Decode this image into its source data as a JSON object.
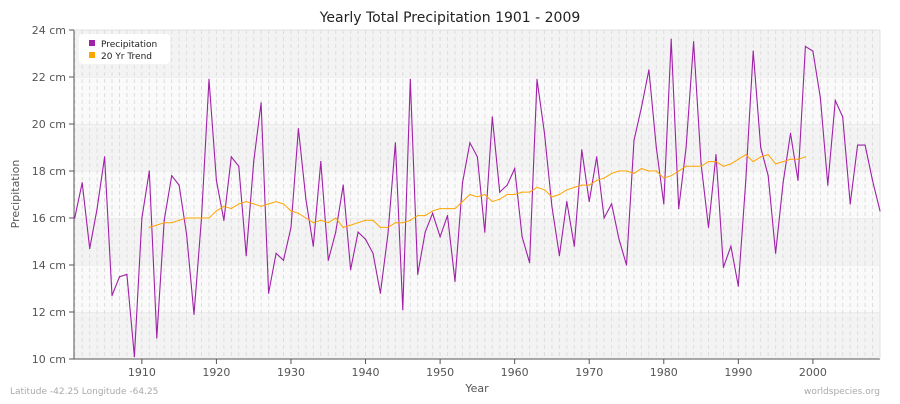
{
  "chart_data": {
    "type": "line",
    "title": "Yearly Total Precipitation 1901 - 2009",
    "xlabel": "Year",
    "ylabel": "Precipitation",
    "xlim": [
      1901,
      2009
    ],
    "ylim": [
      10,
      24
    ],
    "x_ticks": [
      1910,
      1920,
      1930,
      1940,
      1950,
      1960,
      1970,
      1980,
      1990,
      2000
    ],
    "y_ticks": [
      10,
      12,
      14,
      16,
      18,
      20,
      22,
      24
    ],
    "y_tick_labels": [
      "10 cm",
      "12 cm",
      "14 cm",
      "16 cm",
      "18 cm",
      "20 cm",
      "22 cm",
      "24 cm"
    ],
    "grid": true,
    "legend_position": "top-left",
    "series": [
      {
        "name": "Precipitation",
        "color": "#a020a8",
        "x_start": 1901,
        "values": [
          16.0,
          17.5,
          14.7,
          16.4,
          18.6,
          12.7,
          13.5,
          13.6,
          10.1,
          16.0,
          18.0,
          10.9,
          15.9,
          17.8,
          17.4,
          15.3,
          11.9,
          16.0,
          21.9,
          17.6,
          15.9,
          18.6,
          18.2,
          14.4,
          18.4,
          20.9,
          12.8,
          14.5,
          14.2,
          15.6,
          19.8,
          16.8,
          14.8,
          18.4,
          14.2,
          15.4,
          17.4,
          13.8,
          15.4,
          15.1,
          14.5,
          12.8,
          15.3,
          19.2,
          12.1,
          21.9,
          13.6,
          15.4,
          16.2,
          15.2,
          16.1,
          13.3,
          17.5,
          19.2,
          18.6,
          15.4,
          20.3,
          17.1,
          17.4,
          18.1,
          15.2,
          14.1,
          21.9,
          19.6,
          16.5,
          14.4,
          16.7,
          14.8,
          18.9,
          16.7,
          18.6,
          16.0,
          16.6,
          15.1,
          14.0,
          19.3,
          20.7,
          22.3,
          19.0,
          16.6,
          23.6,
          16.4,
          19.0,
          23.5,
          18.3,
          15.6,
          18.7,
          13.9,
          14.8,
          13.1,
          17.6,
          23.1,
          19.0,
          17.8,
          14.5,
          17.5,
          19.6,
          17.6,
          23.3,
          23.1,
          21.1,
          17.4,
          21.0,
          20.3,
          16.6,
          19.1,
          19.1,
          17.6,
          16.3
        ]
      },
      {
        "name": "20 Yr Trend",
        "color": "#ffa500",
        "x_start": 1911,
        "values": [
          15.6,
          15.7,
          15.8,
          15.8,
          15.9,
          16.0,
          16.0,
          16.0,
          16.0,
          16.3,
          16.5,
          16.4,
          16.6,
          16.7,
          16.6,
          16.5,
          16.6,
          16.7,
          16.6,
          16.3,
          16.2,
          16.0,
          15.8,
          15.9,
          15.8,
          16.0,
          15.6,
          15.7,
          15.8,
          15.9,
          15.9,
          15.6,
          15.6,
          15.8,
          15.8,
          15.9,
          16.1,
          16.1,
          16.3,
          16.4,
          16.4,
          16.4,
          16.7,
          17.0,
          16.9,
          17.0,
          16.7,
          16.8,
          17.0,
          17.0,
          17.1,
          17.1,
          17.3,
          17.2,
          16.9,
          17.0,
          17.2,
          17.3,
          17.4,
          17.4,
          17.6,
          17.7,
          17.9,
          18.0,
          18.0,
          17.9,
          18.1,
          18.0,
          18.0,
          17.7,
          17.8,
          18.0,
          18.2,
          18.2,
          18.2,
          18.4,
          18.4,
          18.2,
          18.3,
          18.5,
          18.7,
          18.4,
          18.6,
          18.7,
          18.3,
          18.4,
          18.5,
          18.5,
          18.6
        ]
      }
    ]
  },
  "footer": {
    "location": "Latitude -42.25 Longitude -64.25",
    "source": "worldspecies.org"
  }
}
